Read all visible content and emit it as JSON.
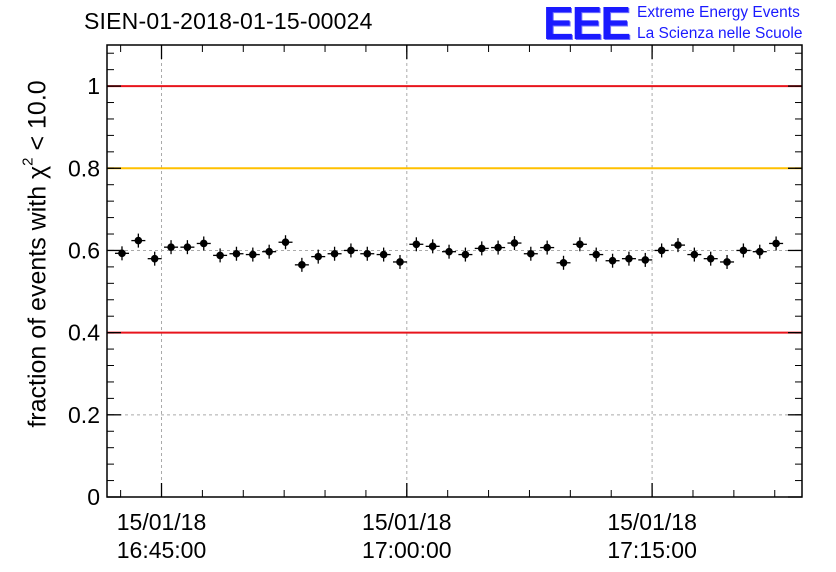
{
  "title": "SIEN-01-2018-01-15-00024",
  "logo": {
    "mark": "EEE",
    "line1": "Extreme Energy Events",
    "line2": "La Scienza nelle Scuole"
  },
  "chart_data": {
    "type": "scatter",
    "ylabel_prefix": "fraction of events with χ",
    "ylabel_sup": "2",
    "ylabel_suffix": " < 10.0",
    "ylim": [
      0,
      1.1
    ],
    "yticks": [
      "0",
      "0.2",
      "0.4",
      "0.6",
      "0.8",
      "1"
    ],
    "xrange_minutes": [
      "16:41:40",
      "17:24:10"
    ],
    "xticks": [
      {
        "date": "15/01/18",
        "time": "16:45:00"
      },
      {
        "date": "15/01/18",
        "time": "17:00:00"
      },
      {
        "date": "15/01/18",
        "time": "17:15:00"
      }
    ],
    "grid": true,
    "reference_lines": [
      {
        "y": 1.0,
        "color": "#e8141c"
      },
      {
        "y": 0.8,
        "color": "#ffc000"
      },
      {
        "y": 0.4,
        "color": "#e8141c"
      }
    ],
    "points_color": "#000000",
    "x_first": "16:42:35",
    "x_step_seconds": 60,
    "values": [
      0.593,
      0.624,
      0.58,
      0.608,
      0.608,
      0.617,
      0.588,
      0.592,
      0.59,
      0.597,
      0.62,
      0.565,
      0.585,
      0.592,
      0.6,
      0.592,
      0.59,
      0.572,
      0.615,
      0.61,
      0.597,
      0.59,
      0.605,
      0.607,
      0.618,
      0.592,
      0.607,
      0.57,
      0.615,
      0.59,
      0.575,
      0.58,
      0.577,
      0.6,
      0.613,
      0.59,
      0.58,
      0.572,
      0.6,
      0.597,
      0.617
    ]
  }
}
